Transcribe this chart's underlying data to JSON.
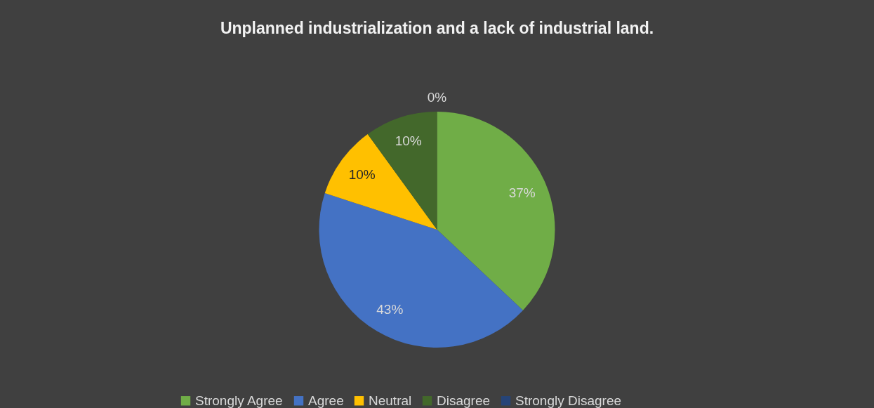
{
  "chart_data": {
    "type": "pie",
    "title": "Unplanned industrialization and a lack of industrial land.",
    "categories": [
      "Strongly Agree",
      "Agree",
      "Neutral",
      "Disagree",
      "Strongly Disagree"
    ],
    "values": [
      37,
      43,
      10,
      10,
      0
    ],
    "colors": [
      "#70ad47",
      "#4472c4",
      "#ffc000",
      "#43682b",
      "#264478"
    ],
    "value_labels": [
      "37%",
      "43%",
      "10%",
      "10%",
      "0%"
    ],
    "legend": "bottom"
  }
}
